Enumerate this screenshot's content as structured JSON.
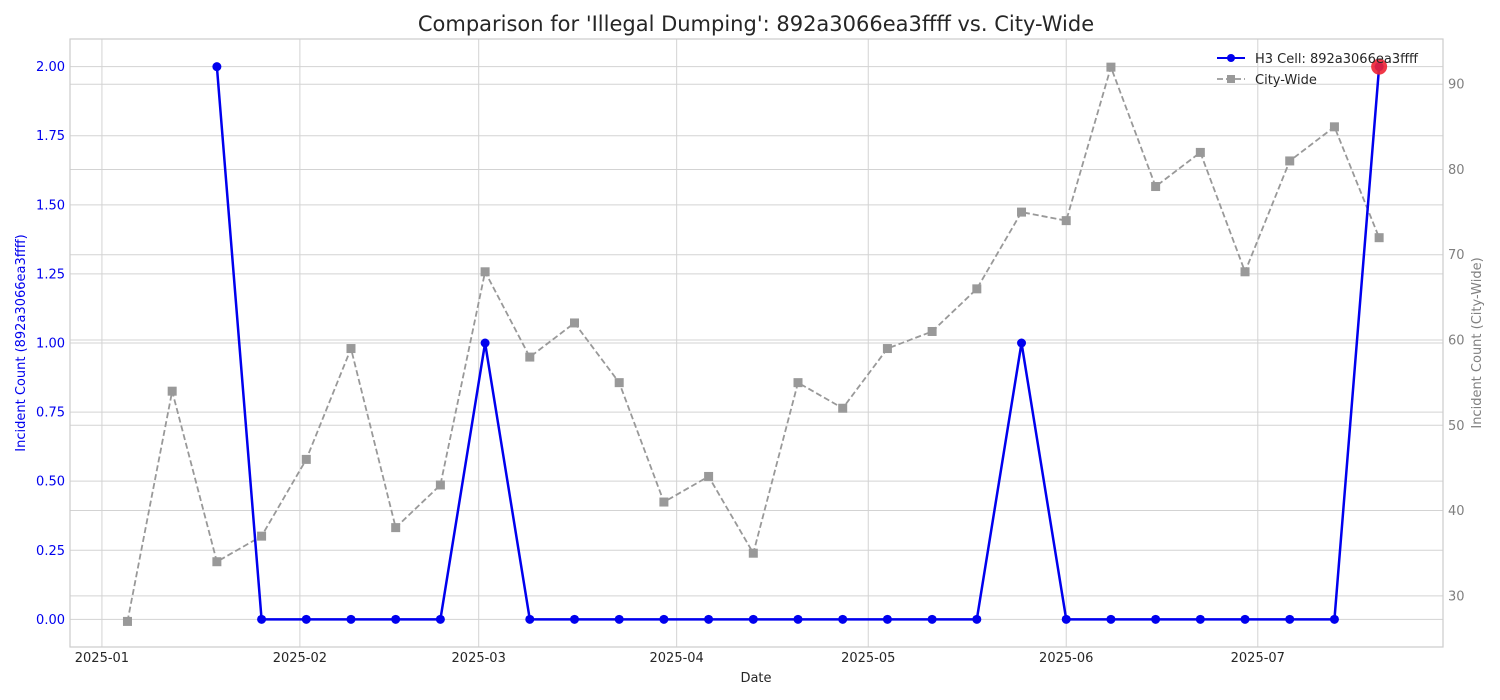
{
  "chart_data": {
    "type": "line",
    "title": "Comparison for 'Illegal Dumping': 892a3066ea3ffff vs. City-Wide",
    "xlabel": "Date",
    "ylabel_left": "Incident Count (892a3066ea3ffff)",
    "ylabel_right": "Incident Count (City-Wide)",
    "x_ticks": [
      "2025-01-01",
      "2025-02-01",
      "2025-03-01",
      "2025-04-01",
      "2025-05-01",
      "2025-06-01",
      "2025-07-01"
    ],
    "x_tick_labels": [
      "2025-01",
      "2025-02",
      "2025-03",
      "2025-04",
      "2025-05",
      "2025-06",
      "2025-07"
    ],
    "xlim": [
      "2024-12-27",
      "2025-07-30"
    ],
    "ylim_left": [
      -0.1,
      2.1
    ],
    "yticks_left": [
      "0.00",
      "0.25",
      "0.50",
      "0.75",
      "1.00",
      "1.25",
      "1.50",
      "1.75",
      "2.00"
    ],
    "ylim_right": [
      24,
      95.3
    ],
    "yticks_right": [
      "30",
      "40",
      "50",
      "60",
      "70",
      "80",
      "90"
    ],
    "grid": true,
    "legend_position": "top-right",
    "series": [
      {
        "name": "H3 Cell: 892a3066ea3ffff",
        "axis": "left",
        "color": "#0000ee",
        "style": "solid",
        "marker": "circle",
        "x": [
          "2025-01-19",
          "2025-01-26",
          "2025-02-02",
          "2025-02-09",
          "2025-02-16",
          "2025-02-23",
          "2025-03-02",
          "2025-03-09",
          "2025-03-16",
          "2025-03-23",
          "2025-03-30",
          "2025-04-06",
          "2025-04-13",
          "2025-04-20",
          "2025-04-27",
          "2025-05-04",
          "2025-05-11",
          "2025-05-18",
          "2025-05-25",
          "2025-06-01",
          "2025-06-08",
          "2025-06-15",
          "2025-06-22",
          "2025-06-29",
          "2025-07-06",
          "2025-07-13",
          "2025-07-20"
        ],
        "values": [
          2,
          0,
          0,
          0,
          0,
          0,
          1,
          0,
          0,
          0,
          0,
          0,
          0,
          0,
          0,
          0,
          0,
          0,
          1,
          0,
          0,
          0,
          0,
          0,
          0,
          0,
          2
        ]
      },
      {
        "name": "City-Wide",
        "axis": "right",
        "color": "#999999",
        "style": "dashed",
        "marker": "square",
        "x": [
          "2025-01-05",
          "2025-01-12",
          "2025-01-19",
          "2025-01-26",
          "2025-02-02",
          "2025-02-09",
          "2025-02-16",
          "2025-02-23",
          "2025-03-02",
          "2025-03-09",
          "2025-03-16",
          "2025-03-23",
          "2025-03-30",
          "2025-04-06",
          "2025-04-13",
          "2025-04-20",
          "2025-04-27",
          "2025-05-04",
          "2025-05-11",
          "2025-05-18",
          "2025-05-25",
          "2025-06-01",
          "2025-06-08",
          "2025-06-15",
          "2025-06-22",
          "2025-06-29",
          "2025-07-06",
          "2025-07-13",
          "2025-07-20"
        ],
        "values": [
          27,
          54,
          34,
          37,
          46,
          59,
          38,
          43,
          68,
          58,
          62,
          55,
          41,
          44,
          35,
          55,
          52,
          59,
          61,
          66,
          75,
          74,
          92,
          78,
          82,
          68,
          81,
          85,
          72
        ]
      }
    ],
    "highlight": {
      "x": "2025-07-20",
      "value": 2,
      "axis": "left",
      "color": "#ee2233"
    }
  }
}
